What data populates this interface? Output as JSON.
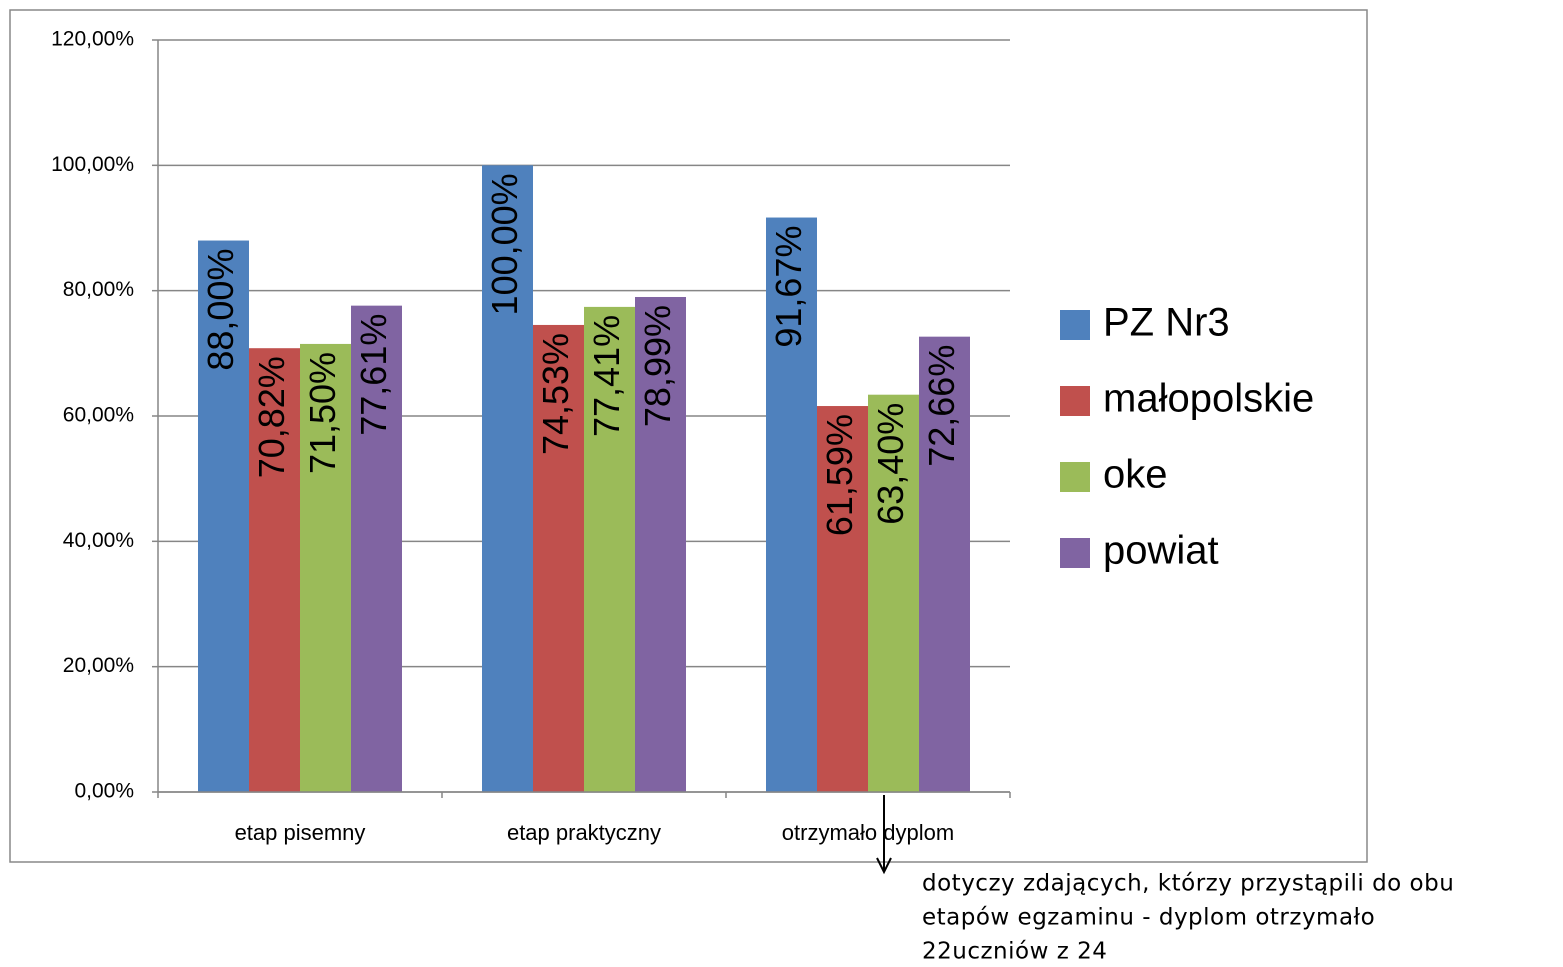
{
  "chart_data": {
    "type": "bar",
    "categories": [
      "etap pisemny",
      "etap praktyczny",
      "otrzymało dyplom"
    ],
    "series": [
      {
        "name": "PZ Nr3",
        "color": "#4f81bd",
        "values": [
          88,
          100,
          91.67
        ],
        "value_labels": [
          "88,00%",
          "100,00%",
          "91,67%"
        ]
      },
      {
        "name": "małopolskie",
        "color": "#c0504d",
        "values": [
          70.82,
          74.53,
          61.59
        ],
        "value_labels": [
          "70,82%",
          "74,53%",
          "61,59%"
        ]
      },
      {
        "name": "oke",
        "color": "#9bbb59",
        "values": [
          71.5,
          77.41,
          63.4
        ],
        "value_labels": [
          "71,50%",
          "77,41%",
          "63,40%"
        ]
      },
      {
        "name": "powiat",
        "color": "#8064a2",
        "values": [
          77.61,
          78.99,
          72.66
        ],
        "value_labels": [
          "77,61%",
          "78,99%",
          "72,66%"
        ]
      }
    ],
    "ylim": [
      0,
      120
    ],
    "yticks": [
      {
        "value": 0,
        "label": "0,00%"
      },
      {
        "value": 20,
        "label": "20,00%"
      },
      {
        "value": 40,
        "label": "40,00%"
      },
      {
        "value": 60,
        "label": "60,00%"
      },
      {
        "value": 80,
        "label": "80,00%"
      },
      {
        "value": 100,
        "label": "100,00%"
      },
      {
        "value": 120,
        "label": "120,00%"
      }
    ],
    "grid": true,
    "legend": "right",
    "annotation": [
      "dotyczy zdających, którzy przystąpili do obu",
      "etapów egzaminu  - dyplom otrzymało",
      "22uczniów z 24"
    ]
  }
}
